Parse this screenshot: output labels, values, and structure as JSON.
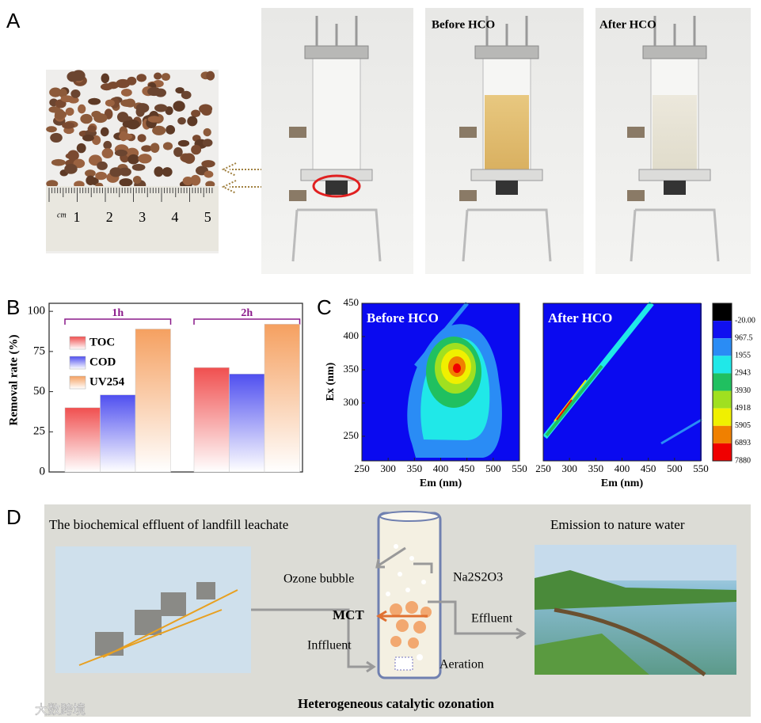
{
  "panel_labels": [
    "A",
    "B",
    "C",
    "D"
  ],
  "panel_a": {
    "ruler_unit": "cm",
    "ruler_numbers": [
      "1",
      "2",
      "3",
      "4",
      "5"
    ],
    "photo_labels": [
      "Before HCO",
      "After HCO"
    ]
  },
  "chart_data": [
    {
      "type": "bar",
      "ylabel": "Removal rate (%)",
      "categories": [
        "1h",
        "2h"
      ],
      "series": [
        {
          "name": "TOC",
          "color": "#f04f4f",
          "values": [
            40,
            65
          ]
        },
        {
          "name": "COD",
          "color": "#4f4ff0",
          "values": [
            48,
            61
          ]
        },
        {
          "name": "UV254",
          "color": "#f5a060",
          "values": [
            89,
            92
          ]
        }
      ],
      "ylim": [
        0,
        105
      ],
      "yticks": [
        0,
        25,
        50,
        75,
        100
      ]
    },
    {
      "type": "contour",
      "panels": [
        {
          "title": "Before HCO"
        },
        {
          "title": "After HCO"
        }
      ],
      "xlabel": "Em (nm)",
      "ylabel": "Ex (nm)",
      "xlim": [
        250,
        550
      ],
      "ylim": [
        213,
        450
      ],
      "xticks": [
        250,
        300,
        350,
        400,
        450,
        500,
        550
      ],
      "yticks": [
        250,
        300,
        350,
        400,
        450
      ],
      "colorbar": [
        {
          "value": -20,
          "label": "-20.00"
        },
        967.5,
        1955,
        2943,
        3930,
        4918,
        5905,
        6893,
        7880
      ],
      "colorbar_colors": [
        "#000000",
        "#1010f0",
        "#2a8cf5",
        "#20e8e8",
        "#20c060",
        "#a0e020",
        "#f0f000",
        "#f08000",
        "#f00000"
      ]
    }
  ],
  "panel_d": {
    "left_title": "The biochemical effluent of landfill leachate",
    "right_title": "Emission  to nature water",
    "ozone": "Ozone bubble",
    "reagent": "Na2S2O3",
    "catalyst": "MCT",
    "effluent": "Effluent",
    "influent": "Inffluent",
    "aeration": "Aeration",
    "caption": "Heterogeneous catalytic ozonation"
  },
  "watermark": "大数跨境"
}
